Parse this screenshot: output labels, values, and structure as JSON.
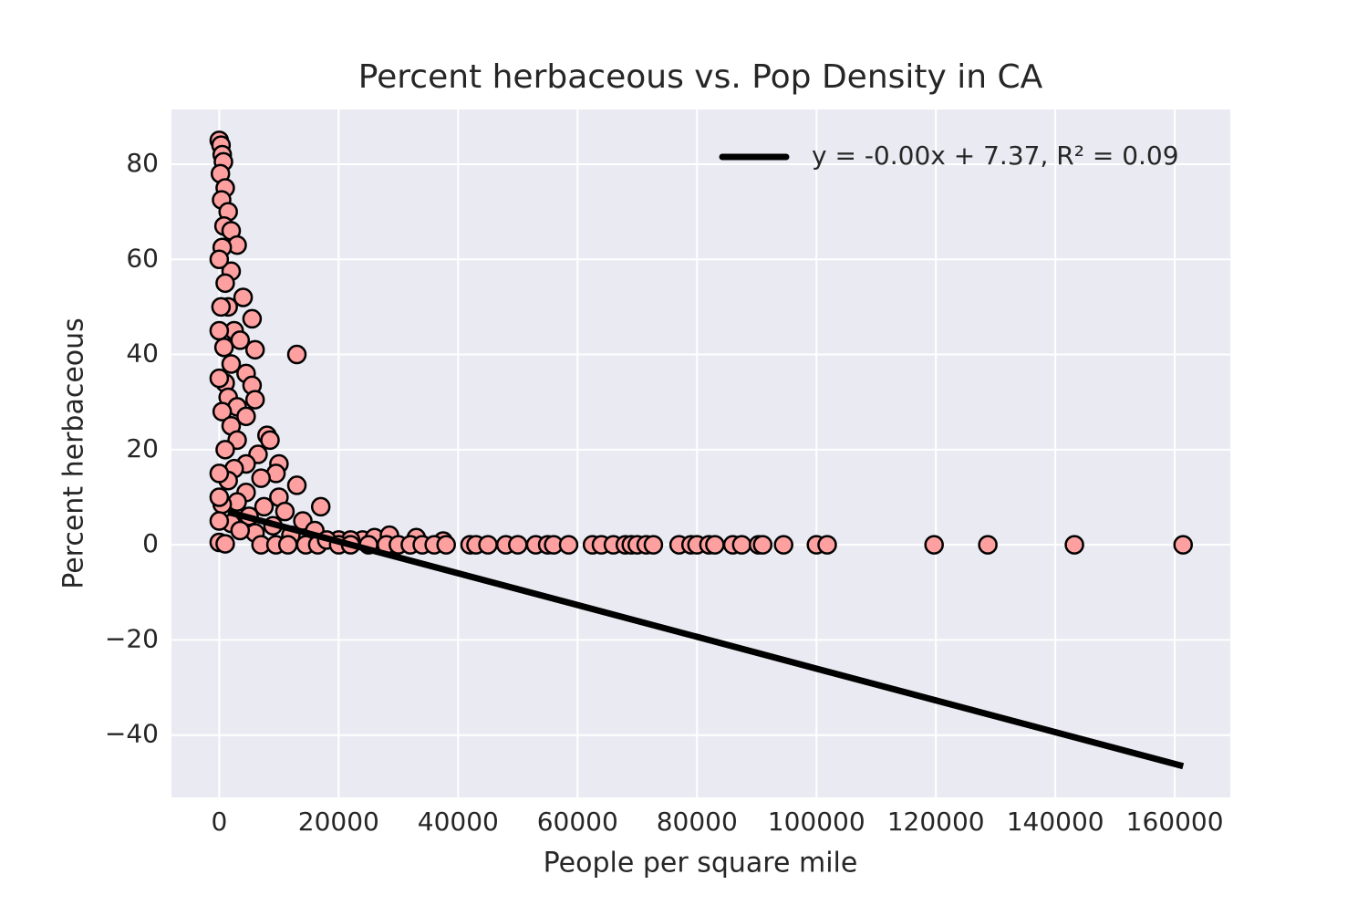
{
  "chart_data": {
    "type": "scatter",
    "title": "Percent herbaceous vs. Pop Density in CA",
    "x_label": "People per square mile",
    "y_label": "Percent herbaceous",
    "color": "#ffa0a0",
    "edge_color": "#000000",
    "grid": true,
    "legend": "upper right",
    "x": [
      0,
      300,
      500,
      700,
      200,
      1000,
      400,
      1500,
      800,
      2000,
      3000,
      500,
      2000,
      1000,
      4000,
      1500,
      300,
      5500,
      2500,
      3500,
      800,
      6000,
      13000,
      2000,
      4500,
      1000,
      5500,
      1500,
      6000,
      3000,
      500,
      4500,
      2000,
      8000,
      3000,
      8500,
      1000,
      6500,
      4500,
      10000,
      2500,
      9500,
      1500,
      7000,
      13000,
      4500,
      10000,
      3000,
      17000,
      7500,
      500,
      11000,
      5000,
      14000,
      2000,
      9000,
      16000,
      6000,
      12000,
      3500,
      20000,
      24000,
      0,
      1000,
      7000,
      9500,
      11500,
      14500,
      16500,
      0,
      0,
      0,
      0,
      0,
      0,
      26000,
      28500,
      33000,
      37500,
      18000,
      22000,
      20000,
      22000,
      25000,
      28000,
      30000,
      32000,
      34000,
      36000,
      38000,
      42000,
      43000,
      45000,
      48000,
      50000,
      53000,
      55000,
      56000,
      58500,
      62500,
      64000,
      66000,
      68000,
      69000,
      70000,
      71500,
      72700,
      77000,
      79000,
      80000,
      82000,
      83000,
      86000,
      87500,
      90300,
      91000,
      94500,
      100000,
      101800,
      119700,
      128700,
      143200,
      161400
    ],
    "values": [
      85,
      84,
      82,
      80.5,
      78,
      75,
      72.5,
      70,
      67,
      66,
      63,
      62.5,
      57.5,
      55,
      52,
      50,
      50,
      47.5,
      45,
      43,
      41.5,
      41,
      40,
      38,
      36,
      34,
      33.5,
      31,
      30.5,
      29,
      28,
      27,
      25,
      23,
      22,
      22,
      20,
      19,
      17,
      17,
      16,
      15,
      13.5,
      14,
      12.5,
      11,
      10,
      9,
      8,
      8,
      8.5,
      7,
      6,
      5,
      4.5,
      4,
      3,
      2.5,
      2,
      3,
      1,
      1,
      0.5,
      0.2,
      0,
      0,
      0,
      0,
      0,
      60,
      45,
      35,
      15,
      10,
      5,
      1.5,
      2,
      1.5,
      0.8,
      1,
      1,
      0,
      0,
      0,
      0,
      0,
      0,
      0,
      0,
      0,
      0,
      0,
      0,
      0,
      0,
      0,
      0,
      0,
      0,
      0,
      0,
      0,
      0,
      0,
      0,
      0,
      0,
      0,
      0,
      0,
      0,
      0,
      0,
      0,
      0,
      0,
      0,
      0,
      0,
      0,
      0,
      0,
      0
    ],
    "line": {
      "name": "y = -0.00x + 7.37, R² = 0.09",
      "color": "#000000",
      "x": [
        1500,
        161400
      ],
      "values": [
        6.87,
        -46.54
      ]
    },
    "xlim": [
      -8000,
      169300
    ],
    "ylim": [
      -53.1,
      91.5
    ],
    "xticks": [
      0,
      20000,
      40000,
      60000,
      80000,
      100000,
      120000,
      140000,
      160000
    ],
    "yticks": [
      {
        "value": -40,
        "label": "−40"
      },
      {
        "value": -20,
        "label": "−20"
      },
      0,
      20,
      40,
      60,
      80
    ]
  }
}
